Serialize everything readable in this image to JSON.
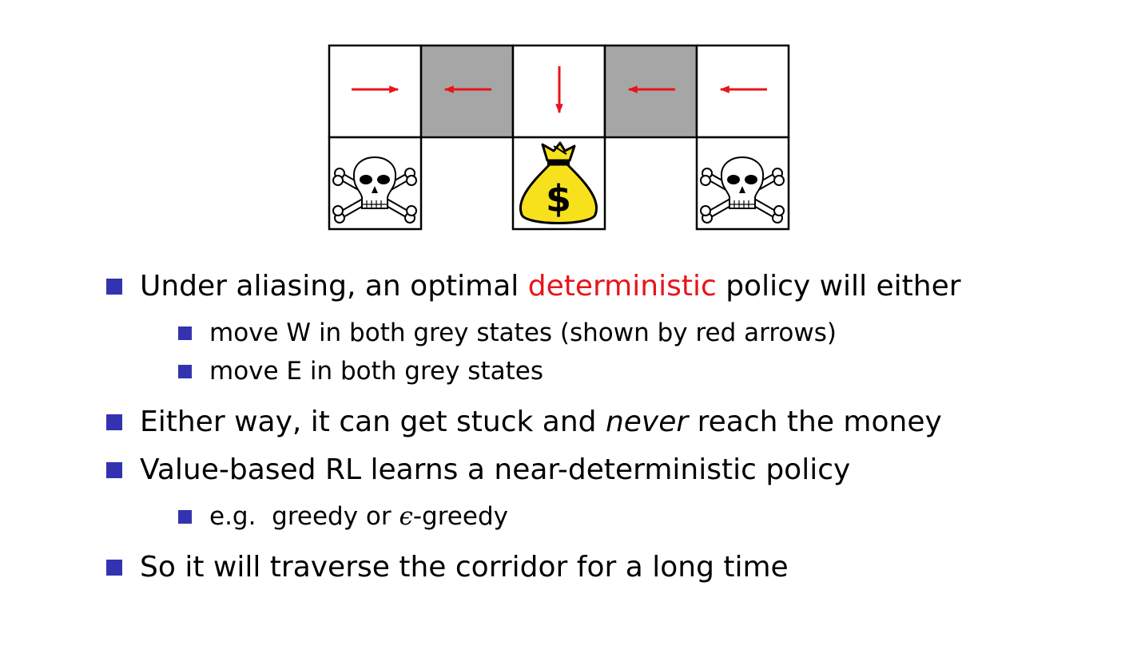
{
  "diagram": {
    "cells": [
      {
        "shade": "white",
        "arrow": "east"
      },
      {
        "shade": "grey",
        "arrow": "west"
      },
      {
        "shade": "white",
        "arrow": "south"
      },
      {
        "shade": "grey",
        "arrow": "west"
      },
      {
        "shade": "white",
        "arrow": "west"
      }
    ],
    "bottom": [
      {
        "col": 0,
        "icon": "skull-crossbones-icon"
      },
      {
        "col": 2,
        "icon": "money-bag-icon"
      },
      {
        "col": 4,
        "icon": "skull-crossbones-icon"
      }
    ],
    "money_bag_symbol": "$",
    "colors": {
      "grey_cell": "#a6a6a6",
      "arrow": "#e8141a",
      "bag": "#f7e11c",
      "bullet": "#3333b2"
    }
  },
  "bullets": {
    "b1": {
      "pre": "Under aliasing, an optimal ",
      "highlight": "deterministic",
      "post": " policy will either"
    },
    "b1a": "move W in both grey states (shown by red arrows)",
    "b1b": "move E in both grey states",
    "b2": {
      "pre": "Either way, it can get stuck and ",
      "emph": "never",
      "post": " reach the money"
    },
    "b3": "Value-based RL learns a near-deterministic policy",
    "b3a": {
      "pre": "e.g.  greedy or ",
      "symbol": "ϵ",
      "post": "-greedy"
    },
    "b4": "So it will traverse the corridor for a long time"
  }
}
